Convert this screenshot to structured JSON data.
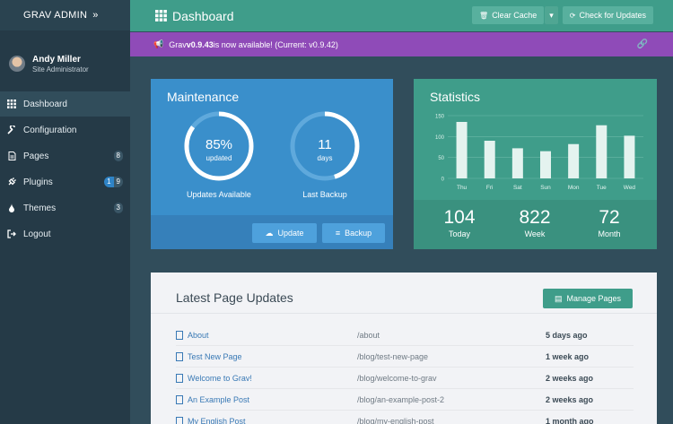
{
  "sidebar": {
    "brand": "GRAV ADMIN",
    "brand_icon": "»",
    "user": {
      "name": "Andy Miller",
      "role": "Site Administrator"
    },
    "items": [
      {
        "label": "Dashboard",
        "icon": "dashboard-icon",
        "active": true
      },
      {
        "label": "Configuration",
        "icon": "wrench-icon"
      },
      {
        "label": "Pages",
        "icon": "file-icon",
        "badge": "8"
      },
      {
        "label": "Plugins",
        "icon": "plug-icon",
        "badge_update": "1",
        "badge": "9"
      },
      {
        "label": "Themes",
        "icon": "tint-icon",
        "badge": "3"
      },
      {
        "label": "Logout",
        "icon": "signout-icon"
      }
    ]
  },
  "topbar": {
    "title": "Dashboard",
    "clear_cache": "Clear Cache",
    "check_updates": "Check for Updates"
  },
  "notice": {
    "prefix": "Grav ",
    "version": "v0.9.43",
    "suffix": " is now available! (Current: v0.9.42)"
  },
  "maintenance": {
    "title": "Maintenance",
    "updates": {
      "value": "85%",
      "caption": "updated",
      "label": "Updates Available",
      "fraction": 0.85
    },
    "backup": {
      "value": "11",
      "caption": "days",
      "label": "Last Backup",
      "fraction": 0.45
    },
    "update_btn": "Update",
    "backup_btn": "Backup"
  },
  "statistics": {
    "title": "Statistics",
    "today": {
      "value": "104",
      "label": "Today"
    },
    "week": {
      "value": "822",
      "label": "Week"
    },
    "month": {
      "value": "72",
      "label": "Month"
    }
  },
  "chart_data": {
    "type": "bar",
    "categories": [
      "Thu",
      "Fri",
      "Sat",
      "Sun",
      "Mon",
      "Tue",
      "Wed"
    ],
    "values": [
      135,
      90,
      72,
      65,
      82,
      127,
      102
    ],
    "yticks": [
      "0",
      "50",
      "100",
      "150"
    ],
    "ylim": [
      0,
      150
    ],
    "grid": true
  },
  "latest": {
    "title": "Latest Page Updates",
    "manage_btn": "Manage Pages",
    "rows": [
      {
        "title": "About",
        "route": "/about",
        "time": "5 days ago"
      },
      {
        "title": "Test New Page",
        "route": "/blog/test-new-page",
        "time": "1 week ago"
      },
      {
        "title": "Welcome to Grav!",
        "route": "/blog/welcome-to-grav",
        "time": "2 weeks ago"
      },
      {
        "title": "An Example Post",
        "route": "/blog/an-example-post-2",
        "time": "2 weeks ago"
      },
      {
        "title": "My English Post",
        "route": "/blog/my-english-post",
        "time": "1 month ago"
      }
    ]
  }
}
